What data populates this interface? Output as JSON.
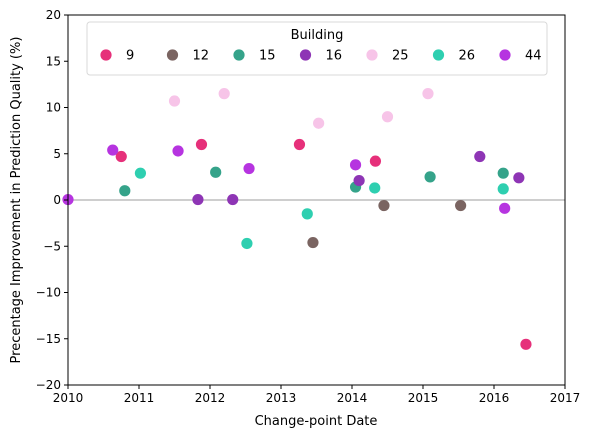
{
  "chart_data": {
    "type": "scatter",
    "xlabel": "Change-point Date",
    "ylabel": "Precentage Improvement in Prediction Quality (%)",
    "xlim": [
      2010,
      2017
    ],
    "ylim": [
      -20,
      20
    ],
    "xticks": [
      2010,
      2011,
      2012,
      2013,
      2014,
      2015,
      2016,
      2017
    ],
    "yticks": [
      -20,
      -15,
      -10,
      -5,
      0,
      5,
      10,
      15,
      20
    ],
    "reference_line": 0,
    "grid": false,
    "legend": {
      "title": "Building",
      "position": "top-center"
    },
    "series": [
      {
        "name": "9",
        "color": "#e6307a",
        "points": [
          [
            2010.75,
            4.7
          ],
          [
            2011.88,
            6.0
          ],
          [
            2013.26,
            6.0
          ],
          [
            2014.33,
            4.2
          ],
          [
            2016.45,
            -15.6
          ]
        ]
      },
      {
        "name": "12",
        "color": "#7a6461",
        "points": [
          [
            2013.45,
            -4.6
          ],
          [
            2014.45,
            -0.6
          ],
          [
            2015.53,
            -0.6
          ]
        ]
      },
      {
        "name": "15",
        "color": "#35a38a",
        "points": [
          [
            2010.8,
            1.0
          ],
          [
            2012.08,
            3.0
          ],
          [
            2014.05,
            1.4
          ],
          [
            2015.1,
            2.5
          ],
          [
            2016.13,
            2.9
          ]
        ]
      },
      {
        "name": "16",
        "color": "#8e35b5",
        "points": [
          [
            2011.83,
            0.05
          ],
          [
            2012.32,
            0.05
          ],
          [
            2014.1,
            2.1
          ],
          [
            2015.8,
            4.7
          ],
          [
            2016.35,
            2.4
          ]
        ]
      },
      {
        "name": "25",
        "color": "#f7c4e8",
        "points": [
          [
            2011.5,
            10.7
          ],
          [
            2012.2,
            11.5
          ],
          [
            2013.53,
            8.3
          ],
          [
            2014.5,
            9.0
          ],
          [
            2015.07,
            11.5
          ]
        ]
      },
      {
        "name": "26",
        "color": "#2ecfb0",
        "points": [
          [
            2011.02,
            2.9
          ],
          [
            2012.52,
            -4.7
          ],
          [
            2013.37,
            -1.5
          ],
          [
            2014.32,
            1.3
          ],
          [
            2016.13,
            1.2
          ]
        ]
      },
      {
        "name": "44",
        "color": "#b634e0",
        "points": [
          [
            2010.0,
            0.05
          ],
          [
            2010.63,
            5.4
          ],
          [
            2011.55,
            5.3
          ],
          [
            2012.55,
            3.4
          ],
          [
            2014.05,
            3.8
          ],
          [
            2016.15,
            -0.9
          ]
        ]
      }
    ]
  }
}
